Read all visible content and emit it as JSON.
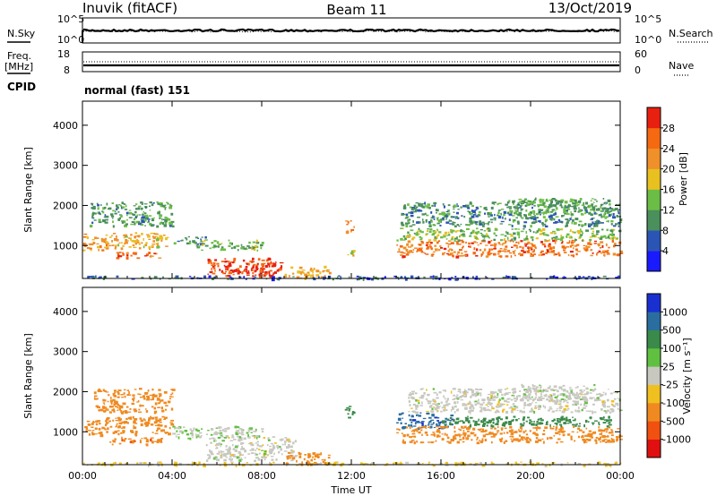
{
  "header": {
    "station": "Inuvik (fitACF)",
    "beam": "Beam 11",
    "date": "13/Oct/2019"
  },
  "panels": {
    "nsky": {
      "left_label": "N.Sky",
      "right_label": "N.Search",
      "left_ticks": [
        "10^5",
        "10^0"
      ],
      "right_ticks": [
        "10^5",
        "10^0"
      ]
    },
    "freq": {
      "left_label_1": "Freq.",
      "left_label_2": "[MHz]",
      "right_label": "Nave",
      "left_ticks": [
        "18",
        "8"
      ],
      "right_ticks": [
        "60",
        "0"
      ]
    },
    "cpid": {
      "label": "CPID",
      "value": "normal (fast) 151"
    }
  },
  "chart_data": [
    {
      "type": "heatmap",
      "quantity": "Power",
      "ylabel": "Slant Range [km]",
      "xlabel": "",
      "ylim": [
        180,
        4600
      ],
      "xlim_hours": [
        0,
        24
      ],
      "x_ticks": [
        "00:00",
        "04:00",
        "08:00",
        "12:00",
        "16:00",
        "20:00",
        "00:00"
      ],
      "y_ticks": [
        1000,
        2000,
        3000,
        4000
      ],
      "colorbar": {
        "label": "Power [dB]",
        "range": [
          0,
          32
        ],
        "ticks": [
          "4",
          "8",
          "12",
          "16",
          "20",
          "24",
          "28"
        ],
        "colors": [
          "#1a1aff",
          "#2b55b5",
          "#4a8f5c",
          "#6cbd45",
          "#e8c020",
          "#f0902a",
          "#f56a10",
          "#e82010"
        ]
      },
      "regions": [
        {
          "t": [
            0.0,
            1.2
          ],
          "r": [
            900,
            1300
          ],
          "level": 22
        },
        {
          "t": [
            0.3,
            4.0
          ],
          "r": [
            1500,
            2100
          ],
          "level": 11
        },
        {
          "t": [
            1.0,
            3.8
          ],
          "r": [
            950,
            1350
          ],
          "level": 19
        },
        {
          "t": [
            1.3,
            3.5
          ],
          "r": [
            700,
            850
          ],
          "level": 26
        },
        {
          "t": [
            4.0,
            5.5
          ],
          "r": [
            1050,
            1250
          ],
          "level": 10
        },
        {
          "t": [
            5.0,
            8.0
          ],
          "r": [
            900,
            1150
          ],
          "level": 13
        },
        {
          "t": [
            5.5,
            8.5
          ],
          "r": [
            250,
            700
          ],
          "level": 28
        },
        {
          "t": [
            7.2,
            9.0
          ],
          "r": [
            250,
            600
          ],
          "level": 30
        },
        {
          "t": [
            9.0,
            11.0
          ],
          "r": [
            200,
            500
          ],
          "level": 20
        },
        {
          "t": [
            11.7,
            12.1
          ],
          "r": [
            1350,
            1650
          ],
          "level": 24
        },
        {
          "t": [
            11.8,
            12.1
          ],
          "r": [
            750,
            900
          ],
          "level": 18
        },
        {
          "t": [
            14.0,
            24.0
          ],
          "r": [
            750,
            1150
          ],
          "level": 25
        },
        {
          "t": [
            14.0,
            24.0
          ],
          "r": [
            1150,
            1450
          ],
          "level": 14
        },
        {
          "t": [
            14.2,
            24.0
          ],
          "r": [
            1500,
            2100
          ],
          "level": 10
        },
        {
          "t": [
            19.0,
            23.5
          ],
          "r": [
            1800,
            2200
          ],
          "level": 12
        },
        {
          "t": [
            0.0,
            24.0
          ],
          "r": [
            180,
            260
          ],
          "level": 6
        }
      ]
    },
    {
      "type": "heatmap",
      "quantity": "Velocity",
      "ylabel": "Slant Range [km]",
      "xlabel": "Time UT",
      "ylim": [
        180,
        4600
      ],
      "xlim_hours": [
        0,
        24
      ],
      "x_ticks": [
        "00:00",
        "04:00",
        "08:00",
        "12:00",
        "16:00",
        "20:00",
        "00:00"
      ],
      "y_ticks": [
        1000,
        2000,
        3000,
        4000
      ],
      "colorbar": {
        "label": "Velocity [m s⁻¹]",
        "ticks": [
          "1000",
          "500",
          "100",
          "25",
          "-25",
          "-100",
          "-500",
          "-1000"
        ],
        "colors": [
          "#1a2fd0",
          "#2a6ea0",
          "#3a8a4a",
          "#60c040",
          "#c8c8c0",
          "#f0c020",
          "#f08a20",
          "#f05010",
          "#e01010"
        ]
      },
      "regions": [
        {
          "t": [
            0.0,
            1.2
          ],
          "r": [
            900,
            1300
          ],
          "level": -300
        },
        {
          "t": [
            0.5,
            4.0
          ],
          "r": [
            1500,
            2100
          ],
          "level": -200
        },
        {
          "t": [
            1.0,
            4.0
          ],
          "r": [
            950,
            1400
          ],
          "level": -250
        },
        {
          "t": [
            1.2,
            3.5
          ],
          "r": [
            700,
            900
          ],
          "level": -400
        },
        {
          "t": [
            4.0,
            8.0
          ],
          "r": [
            850,
            1150
          ],
          "level": 20
        },
        {
          "t": [
            5.5,
            9.5
          ],
          "r": [
            300,
            900
          ],
          "level": 0
        },
        {
          "t": [
            9.0,
            11.0
          ],
          "r": [
            200,
            500
          ],
          "level": -150
        },
        {
          "t": [
            11.7,
            12.1
          ],
          "r": [
            1350,
            1650
          ],
          "level": 300
        },
        {
          "t": [
            14.0,
            16.5
          ],
          "r": [
            1100,
            1500
          ],
          "level": 800
        },
        {
          "t": [
            14.0,
            24.0
          ],
          "r": [
            750,
            1150
          ],
          "level": -300
        },
        {
          "t": [
            16.0,
            23.5
          ],
          "r": [
            1150,
            1400
          ],
          "level": 150
        },
        {
          "t": [
            14.5,
            24.0
          ],
          "r": [
            1500,
            2100
          ],
          "level": 0
        },
        {
          "t": [
            19.5,
            23.0
          ],
          "r": [
            1800,
            2200
          ],
          "level": 5
        },
        {
          "t": [
            0.0,
            24.0
          ],
          "r": [
            180,
            260
          ],
          "level": -40
        }
      ]
    }
  ]
}
